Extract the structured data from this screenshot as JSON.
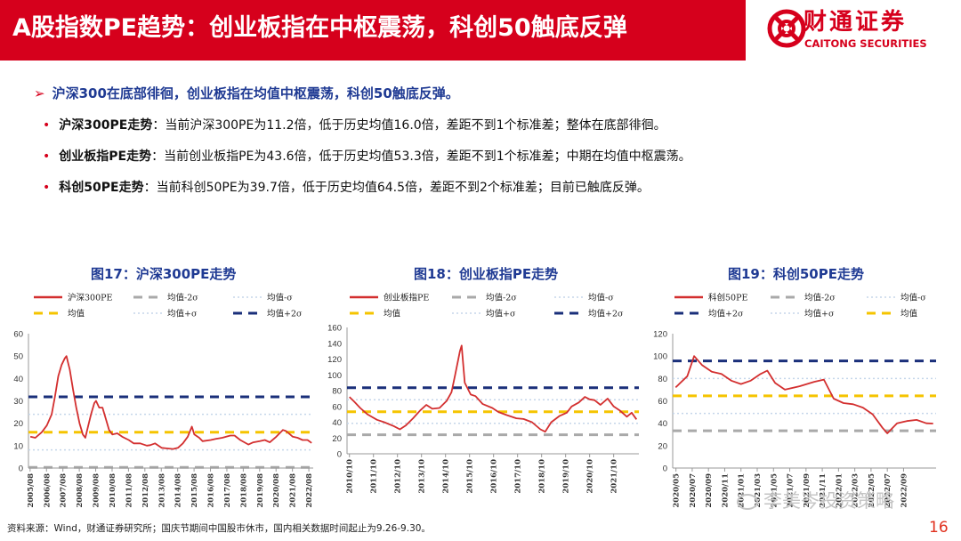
{
  "header": {
    "title": "A股指数PE趋势：创业板指在中枢震荡，科创50触底反弹",
    "logo_name": "财通证券",
    "logo_en": "CAITONG SECURITIES"
  },
  "bullets": {
    "main": "沪深300在底部徘徊，创业板指在均值中枢震荡，科创50触底反弹。",
    "items": [
      {
        "bold": "沪深300PE走势",
        "text": "：当前沪深300PE为11.2倍，低于历史均值16.0倍，差距不到1个标准差；整体在底部徘徊。"
      },
      {
        "bold": "创业板指PE走势",
        "text": "：当前创业板指PE为43.6倍，低于历史均值53.3倍，差距不到1个标准差；中期在均值中枢震荡。"
      },
      {
        "bold": "科创50PE走势",
        "text": "：当前科创50PE为39.7倍，低于历史均值64.5倍，差距不到2个标准差；目前已触底反弹。"
      }
    ]
  },
  "legend_labels": {
    "minus2": "均值-2σ",
    "minus1": "均值-σ",
    "mean": "均值",
    "plus1": "均值+σ",
    "plus2": "均值+2σ"
  },
  "colors": {
    "series": "#d32f2f",
    "mean": "#f5c400",
    "plus2": "#1a2f7a",
    "minus2": "#a9a9a9",
    "sigma": "#c5d6ea",
    "brand": "#d6001c"
  },
  "chart_data": [
    {
      "type": "line",
      "title": "图17：沪深300PE走势",
      "series_name": "沪深300PE",
      "ylim": [
        0,
        60
      ],
      "yticks": [
        0,
        10,
        20,
        30,
        40,
        50,
        60
      ],
      "xticks": [
        "2005/08",
        "2006/08",
        "2007/08",
        "2008/08",
        "2009/08",
        "2010/08",
        "2011/08",
        "2012/08",
        "2013/08",
        "2014/08",
        "2015/08",
        "2016/08",
        "2017/08",
        "2018/08",
        "2019/08",
        "2020/08",
        "2021/08",
        "2022/08"
      ],
      "bands": {
        "mean": 16.0,
        "plus1": 24.0,
        "plus2": 31.8,
        "minus1": 8.1,
        "minus2": 0.3
      },
      "legend": [
        "series",
        "minus2",
        "minus1",
        "mean",
        "plus1",
        "plus2"
      ],
      "points": [
        [
          2005.6,
          14
        ],
        [
          2005.9,
          13.5
        ],
        [
          2006.3,
          16
        ],
        [
          2006.6,
          19
        ],
        [
          2006.9,
          24
        ],
        [
          2007.1,
          32
        ],
        [
          2007.3,
          41
        ],
        [
          2007.5,
          46
        ],
        [
          2007.7,
          49
        ],
        [
          2007.8,
          50
        ],
        [
          2007.9,
          47
        ],
        [
          2008.0,
          44
        ],
        [
          2008.2,
          35
        ],
        [
          2008.4,
          27
        ],
        [
          2008.6,
          20
        ],
        [
          2008.8,
          15
        ],
        [
          2008.95,
          13.5
        ],
        [
          2009.1,
          18
        ],
        [
          2009.3,
          24
        ],
        [
          2009.5,
          29
        ],
        [
          2009.6,
          30
        ],
        [
          2009.8,
          27
        ],
        [
          2010.0,
          27
        ],
        [
          2010.2,
          22
        ],
        [
          2010.4,
          17
        ],
        [
          2010.6,
          15
        ],
        [
          2010.9,
          15.5
        ],
        [
          2011.2,
          14
        ],
        [
          2011.6,
          12.5
        ],
        [
          2011.9,
          11
        ],
        [
          2012.3,
          11
        ],
        [
          2012.7,
          10
        ],
        [
          2012.9,
          10.2
        ],
        [
          2013.2,
          11
        ],
        [
          2013.6,
          9
        ],
        [
          2013.9,
          8.8
        ],
        [
          2014.3,
          8.5
        ],
        [
          2014.6,
          9
        ],
        [
          2014.9,
          11
        ],
        [
          2015.2,
          14
        ],
        [
          2015.45,
          18.5
        ],
        [
          2015.6,
          15
        ],
        [
          2015.9,
          13.5
        ],
        [
          2016.1,
          12
        ],
        [
          2016.6,
          12.5
        ],
        [
          2016.9,
          13
        ],
        [
          2017.3,
          13.5
        ],
        [
          2017.8,
          14.5
        ],
        [
          2018.05,
          14.5
        ],
        [
          2018.4,
          12.5
        ],
        [
          2018.9,
          10.5
        ],
        [
          2019.2,
          11.5
        ],
        [
          2019.6,
          12
        ],
        [
          2019.9,
          12.5
        ],
        [
          2020.2,
          11.5
        ],
        [
          2020.6,
          14
        ],
        [
          2021.0,
          17
        ],
        [
          2021.2,
          16.5
        ],
        [
          2021.6,
          14
        ],
        [
          2021.9,
          13.5
        ],
        [
          2022.2,
          12.5
        ],
        [
          2022.5,
          12.5
        ],
        [
          2022.75,
          11.2
        ]
      ]
    },
    {
      "type": "line",
      "title": "图18：创业板指PE走势",
      "series_name": "创业板指PE",
      "ylim": [
        0,
        160
      ],
      "yticks": [
        0,
        20,
        40,
        60,
        80,
        100,
        120,
        140,
        160
      ],
      "xticks": [
        "2010/10",
        "2011/10",
        "2012/10",
        "2013/10",
        "2014/10",
        "2015/10",
        "2016/10",
        "2017/10",
        "2018/10",
        "2019/10",
        "2020/10",
        "2021/10"
      ],
      "bands": {
        "mean": 53.3,
        "plus1": 68.5,
        "plus2": 83.7,
        "minus1": 38.6,
        "minus2": 24.1
      },
      "legend": [
        "series",
        "minus2",
        "minus1",
        "mean",
        "plus1",
        "plus2"
      ],
      "points": [
        [
          2010.75,
          72
        ],
        [
          2010.95,
          66
        ],
        [
          2011.2,
          58
        ],
        [
          2011.5,
          50
        ],
        [
          2011.9,
          43
        ],
        [
          2012.2,
          40
        ],
        [
          2012.6,
          35
        ],
        [
          2012.85,
          31
        ],
        [
          2013.1,
          36
        ],
        [
          2013.4,
          45
        ],
        [
          2013.7,
          55
        ],
        [
          2013.95,
          62
        ],
        [
          2014.2,
          57
        ],
        [
          2014.5,
          58
        ],
        [
          2014.8,
          67
        ],
        [
          2015.0,
          78
        ],
        [
          2015.15,
          100
        ],
        [
          2015.35,
          130
        ],
        [
          2015.42,
          137
        ],
        [
          2015.55,
          90
        ],
        [
          2015.8,
          75
        ],
        [
          2016.0,
          73
        ],
        [
          2016.3,
          63
        ],
        [
          2016.7,
          58
        ],
        [
          2016.95,
          53
        ],
        [
          2017.3,
          49
        ],
        [
          2017.7,
          45
        ],
        [
          2018.0,
          44
        ],
        [
          2018.35,
          40
        ],
        [
          2018.7,
          31
        ],
        [
          2018.9,
          28
        ],
        [
          2019.15,
          40
        ],
        [
          2019.5,
          48
        ],
        [
          2019.8,
          52
        ],
        [
          2020.0,
          60
        ],
        [
          2020.3,
          65
        ],
        [
          2020.55,
          72
        ],
        [
          2020.75,
          69
        ],
        [
          2020.95,
          68
        ],
        [
          2021.2,
          62
        ],
        [
          2021.5,
          70
        ],
        [
          2021.75,
          60
        ],
        [
          2022.0,
          55
        ],
        [
          2022.3,
          47
        ],
        [
          2022.5,
          52
        ],
        [
          2022.7,
          43.6
        ]
      ]
    },
    {
      "type": "line",
      "title": "图19：科创50PE走势",
      "series_name": "科创50PE",
      "ylim": [
        0,
        120
      ],
      "yticks": [
        0,
        20,
        40,
        60,
        80,
        100,
        120
      ],
      "xticks": [
        "2020/05",
        "2020/07",
        "2020/09",
        "2020/11",
        "2021/01",
        "2021/03",
        "2021/05",
        "2021/07",
        "2021/09",
        "2021/11",
        "2022/01",
        "2022/03",
        "2022/05",
        "2022/07",
        "2022/09"
      ],
      "bands": {
        "mean": 64.5,
        "plus1": 80.0,
        "plus2": 95.7,
        "minus1": 48.8,
        "minus2": 33.3
      },
      "legend": [
        "series",
        "minus2",
        "minus1",
        "plus2",
        "plus1",
        "mean"
      ],
      "points": [
        [
          2020.33,
          72
        ],
        [
          2020.45,
          82
        ],
        [
          2020.52,
          100
        ],
        [
          2020.6,
          92
        ],
        [
          2020.7,
          86
        ],
        [
          2020.8,
          84
        ],
        [
          2020.9,
          78
        ],
        [
          2021.0,
          75
        ],
        [
          2021.1,
          78
        ],
        [
          2021.2,
          84
        ],
        [
          2021.27,
          87
        ],
        [
          2021.35,
          76
        ],
        [
          2021.45,
          70
        ],
        [
          2021.6,
          73
        ],
        [
          2021.75,
          77
        ],
        [
          2021.85,
          79
        ],
        [
          2021.95,
          62
        ],
        [
          2022.05,
          58
        ],
        [
          2022.15,
          57
        ],
        [
          2022.25,
          54
        ],
        [
          2022.35,
          48
        ],
        [
          2022.45,
          36
        ],
        [
          2022.5,
          31
        ],
        [
          2022.6,
          40
        ],
        [
          2022.7,
          42
        ],
        [
          2022.8,
          43
        ],
        [
          2022.9,
          40
        ],
        [
          2022.97,
          39.7
        ]
      ]
    }
  ],
  "footer": {
    "source": "资料来源：Wind，财通证券研究所；国庆节期间中国股市休市，国内相关数据时间起止为9.26-9.30。",
    "page_number": "16",
    "watermark": "李美岑投资策略"
  }
}
